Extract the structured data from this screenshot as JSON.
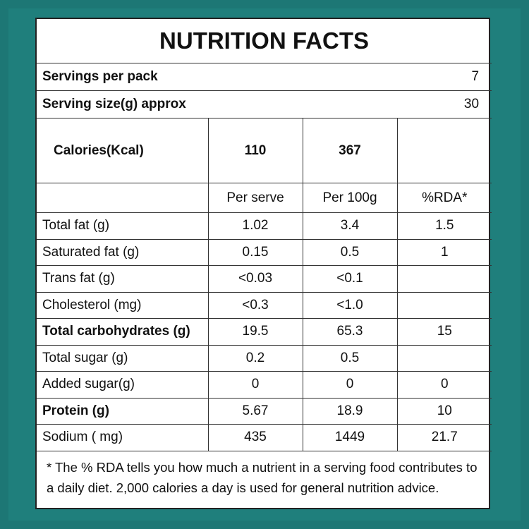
{
  "title": "NUTRITION FACTS",
  "servings": [
    {
      "label": "Servings per pack",
      "value": "7"
    },
    {
      "label": "Serving size(g) approx",
      "value": "30"
    }
  ],
  "calories": {
    "label": "Calories(Kcal)",
    "per_serve": "110",
    "per_100g": "367"
  },
  "columns": [
    "Per serve",
    "Per 100g",
    "%RDA*"
  ],
  "rows": [
    {
      "name": "Total fat (g)",
      "per_serve": "1.02",
      "per_100g": "3.4",
      "rda": "1.5"
    },
    {
      "name": "Saturated fat (g)",
      "per_serve": "0.15",
      "per_100g": "0.5",
      "rda": "1"
    },
    {
      "name": "Trans fat (g)",
      "per_serve": "<0.03",
      "per_100g": "<0.1"
    },
    {
      "name": "Cholesterol (mg)",
      "per_serve": "<0.3",
      "per_100g": "<1.0"
    },
    {
      "name": "Total carbohydrates (g)",
      "per_serve": "19.5",
      "per_100g": "65.3",
      "rda": "15",
      "bold": true
    },
    {
      "name": "Total sugar (g)",
      "per_serve": "0.2",
      "per_100g": "0.5"
    },
    {
      "name": "Added sugar(g)",
      "per_serve": "0",
      "per_100g": "0",
      "rda": "0"
    },
    {
      "name": "Protein (g)",
      "per_serve": "5.67",
      "per_100g": "18.9",
      "rda": "10",
      "bold": true
    },
    {
      "name": "Sodium ( mg)",
      "per_serve": "435",
      "per_100g": "1449",
      "rda": "21.7"
    }
  ],
  "footnote": "* The % RDA tells you how much a nutrient in a serving food contributes to a daily diet. 2,000 calories a day is used for general nutrition advice."
}
